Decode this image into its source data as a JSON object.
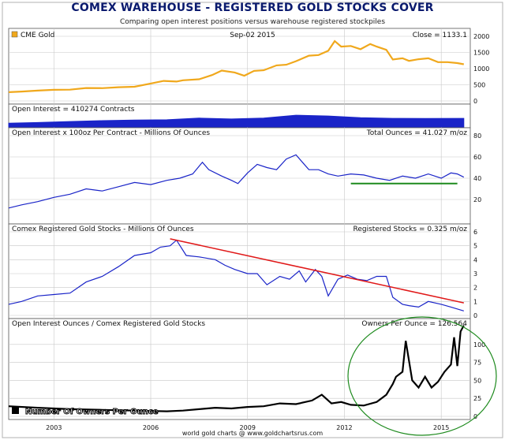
{
  "header": {
    "title": "COMEX WAREHOUSE - REGISTERED GOLD STOCKS COVER",
    "subtitle": "Comparing open interest positions versus warehouse registered stockpiles"
  },
  "footer": {
    "credit": "world gold charts @ www.goldchartsrus.com"
  },
  "colors": {
    "gold": "#f0a81c",
    "blue": "#1a24c8",
    "red": "#e01818",
    "green": "#1d8a1d",
    "black": "#000000",
    "grid": "#c8c8c8",
    "panel_bg": "#ffffff",
    "frame_bg": "#dcdcdc"
  },
  "chart_data": [
    {
      "type": "line",
      "legend_label": "CME Gold",
      "date_label": "Sep-02 2015",
      "readout": "Close = 1133.1",
      "ylim": [
        0,
        2000
      ],
      "yticks": [
        "0",
        "500",
        "1000",
        "1500",
        "2000"
      ],
      "x": [
        2001.6,
        2002.0,
        2002.5,
        2003.0,
        2003.5,
        2004.0,
        2004.5,
        2005.0,
        2005.5,
        2006.0,
        2006.4,
        2006.8,
        2007.0,
        2007.5,
        2007.9,
        2008.2,
        2008.6,
        2008.9,
        2009.2,
        2009.5,
        2009.9,
        2010.2,
        2010.5,
        2010.9,
        2011.2,
        2011.5,
        2011.7,
        2011.9,
        2012.2,
        2012.5,
        2012.8,
        2013.0,
        2013.3,
        2013.5,
        2013.8,
        2014.0,
        2014.3,
        2014.6,
        2014.9,
        2015.2,
        2015.5,
        2015.7
      ],
      "values": [
        270,
        290,
        320,
        345,
        350,
        400,
        395,
        425,
        440,
        540,
        620,
        600,
        640,
        670,
        800,
        940,
        880,
        780,
        930,
        950,
        1100,
        1120,
        1230,
        1400,
        1420,
        1550,
        1850,
        1680,
        1700,
        1600,
        1760,
        1680,
        1580,
        1280,
        1320,
        1240,
        1290,
        1320,
        1200,
        1200,
        1170,
        1133
      ]
    },
    {
      "type": "area",
      "readout": "Open Interest = 410274 Contracts",
      "x": [
        2001.6,
        2002.5,
        2003.5,
        2004.5,
        2005.5,
        2006.5,
        2007.5,
        2008.5,
        2009.5,
        2010.5,
        2011.5,
        2012.5,
        2013.5,
        2014.5,
        2015.7
      ],
      "values": [
        180000,
        210000,
        260000,
        300000,
        330000,
        340000,
        420000,
        380000,
        420000,
        560000,
        520000,
        440000,
        410000,
        400000,
        410274
      ]
    },
    {
      "type": "line",
      "label": "Open Interest x 100oz Per Contract - Millions Of Ounces",
      "readout": "Total Ounces = 41.027 m/oz",
      "ylim": [
        0,
        80
      ],
      "yticks": [
        "20",
        "40",
        "60",
        "80"
      ],
      "x": [
        2001.6,
        2002.0,
        2002.5,
        2003.0,
        2003.5,
        2004.0,
        2004.5,
        2005.0,
        2005.5,
        2006.0,
        2006.5,
        2006.9,
        2007.3,
        2007.6,
        2007.8,
        2008.2,
        2008.5,
        2008.7,
        2009.0,
        2009.3,
        2009.6,
        2009.9,
        2010.2,
        2010.5,
        2010.7,
        2010.9,
        2011.2,
        2011.5,
        2011.8,
        2012.2,
        2012.6,
        2013.0,
        2013.4,
        2013.8,
        2014.2,
        2014.6,
        2015.0,
        2015.3,
        2015.5,
        2015.7
      ],
      "values": [
        12,
        15,
        18,
        22,
        25,
        30,
        28,
        32,
        36,
        34,
        38,
        40,
        44,
        55,
        48,
        42,
        38,
        35,
        45,
        53,
        50,
        48,
        58,
        62,
        55,
        48,
        48,
        44,
        42,
        44,
        43,
        40,
        38,
        42,
        40,
        44,
        40,
        45,
        44,
        41
      ],
      "reference_line": {
        "x": [
          2012.2,
          2015.5
        ],
        "value": 35
      }
    },
    {
      "type": "line",
      "label": "Comex Registered Gold Stocks - Millions Of Ounces",
      "readout": "Registered Stocks = 0.325 m/oz",
      "ylim": [
        0,
        6
      ],
      "yticks": [
        "0",
        "1",
        "2",
        "3",
        "4",
        "5",
        "6"
      ],
      "x": [
        2001.6,
        2002.0,
        2002.5,
        2003.0,
        2003.5,
        2004.0,
        2004.5,
        2005.0,
        2005.5,
        2006.0,
        2006.3,
        2006.6,
        2006.8,
        2007.1,
        2007.5,
        2008.0,
        2008.3,
        2008.6,
        2009.0,
        2009.3,
        2009.6,
        2010.0,
        2010.3,
        2010.6,
        2010.8,
        2011.1,
        2011.3,
        2011.5,
        2011.8,
        2012.1,
        2012.4,
        2012.7,
        2013.0,
        2013.3,
        2013.5,
        2013.8,
        2014.0,
        2014.3,
        2014.6,
        2015.0,
        2015.3,
        2015.7
      ],
      "values": [
        0.8,
        1.0,
        1.4,
        1.5,
        1.6,
        2.4,
        2.8,
        3.5,
        4.3,
        4.5,
        4.9,
        5.0,
        5.4,
        4.3,
        4.2,
        4.0,
        3.6,
        3.3,
        3.0,
        3.0,
        2.2,
        2.8,
        2.6,
        3.2,
        2.4,
        3.3,
        2.8,
        1.4,
        2.6,
        2.9,
        2.6,
        2.5,
        2.8,
        2.8,
        1.3,
        0.8,
        0.7,
        0.6,
        1.0,
        0.8,
        0.6,
        0.325
      ],
      "trend_line": {
        "x": [
          2006.6,
          2015.7
        ],
        "values": [
          5.5,
          0.9
        ]
      }
    },
    {
      "type": "line",
      "label": "Open Interest Ounces / Comex Registered Gold Stocks",
      "readout": "Owners Per Ounce = 126.564",
      "legend_label": "Number Of Owners Per Ounce",
      "ylim": [
        0,
        125
      ],
      "yticks": [
        "0",
        "25",
        "50",
        "75",
        "100"
      ],
      "x": [
        2001.6,
        2002.5,
        2003.5,
        2004.5,
        2005.5,
        2006.5,
        2007.0,
        2007.5,
        2008.0,
        2008.5,
        2009.0,
        2009.5,
        2010.0,
        2010.5,
        2011.0,
        2011.3,
        2011.6,
        2011.9,
        2012.2,
        2012.6,
        2013.0,
        2013.3,
        2013.5,
        2013.6,
        2013.8,
        2013.9,
        2014.1,
        2014.3,
        2014.5,
        2014.7,
        2014.9,
        2015.1,
        2015.3,
        2015.4,
        2015.5,
        2015.6,
        2015.7
      ],
      "values": [
        14,
        12,
        10,
        9,
        8,
        7,
        8,
        10,
        12,
        11,
        13,
        14,
        18,
        17,
        22,
        30,
        18,
        20,
        16,
        15,
        20,
        30,
        45,
        55,
        62,
        105,
        50,
        40,
        55,
        40,
        48,
        62,
        72,
        110,
        70,
        118,
        126.564
      ],
      "annotation": "green ellipse highlighting 2013-2015 spike"
    }
  ],
  "x_axis": {
    "ticks": [
      2003,
      2006,
      2009,
      2012,
      2015
    ],
    "labels": [
      "2003",
      "2006",
      "2009",
      "2012",
      "2015"
    ],
    "range": [
      2001.6,
      2015.9
    ]
  }
}
